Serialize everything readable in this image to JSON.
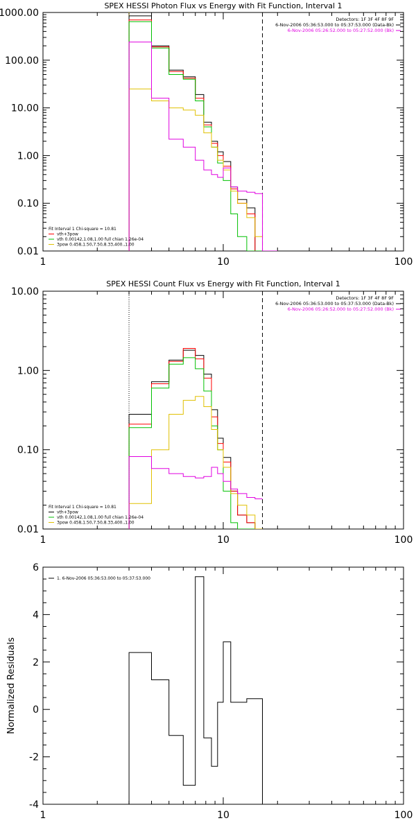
{
  "chart_data": [
    {
      "type": "line",
      "title": "SPEX HESSI Photon Flux vs Energy with Fit Function, Interval 1",
      "xlabel": "",
      "ylabel": "",
      "x_scale": "log",
      "y_scale": "log",
      "xlim": [
        1,
        100
      ],
      "ylim": [
        0.01,
        1000
      ],
      "x_ticks": [
        {
          "value": 1,
          "label": "1"
        },
        {
          "value": 10,
          "label": "10"
        },
        {
          "value": 100,
          "label": "100"
        }
      ],
      "y_ticks": [
        {
          "value": 1000,
          "label": "1000.00"
        },
        {
          "value": 100,
          "label": "100.00"
        },
        {
          "value": 10,
          "label": "10.00"
        },
        {
          "value": 1,
          "label": "1.00"
        },
        {
          "value": 0.1,
          "label": "0.10"
        },
        {
          "value": 0.01,
          "label": "0.01"
        }
      ],
      "header_lines": [
        "Detectors: 1F 3F 4F 8F 9F",
        "6-Nov-2006 05:36:53.000 to 05:37:53.000 (Data-Bk)",
        "6-Nov-2006 05:26:52.000 to 05:27:52.000 (Bk)"
      ],
      "header_colors": [
        "#000000",
        "#000000",
        "#e000e0"
      ],
      "legend_lines": [
        "Fit Interval 1    Chi-square = 10.81",
        "vth+3pow",
        "vth 0.00142,1.08,1.00  full chian 1.26e-04",
        "3pow 0.458,1.50,7.50,8.33,400.,1.00"
      ],
      "legend_colors": [
        "#000000",
        "#ff0000",
        "#00c000",
        "#e0c000"
      ],
      "vlines": [
        {
          "x": 3.0,
          "style": "dotted",
          "color": "#e0c000"
        },
        {
          "x": 16.5,
          "style": "dashed",
          "color": "#000000"
        }
      ],
      "edges": [
        3.0,
        4.0,
        5.0,
        6.0,
        7.0,
        7.8,
        8.6,
        9.3,
        10.0,
        11.0,
        12.0,
        13.5,
        15.0,
        16.5,
        18.0,
        20.0
      ],
      "series": [
        {
          "color": "#000000",
          "values": [
            850,
            200,
            62,
            45,
            19,
            5,
            2.0,
            1.2,
            0.75,
            0.22,
            0.12,
            0.08,
            null,
            null,
            null
          ]
        },
        {
          "color": "#ff0000",
          "values": [
            700,
            190,
            58,
            42,
            16,
            4.4,
            1.8,
            1.0,
            0.6,
            0.2,
            0.1,
            0.06,
            null,
            null,
            null
          ]
        },
        {
          "color": "#00c000",
          "values": [
            640,
            180,
            50,
            40,
            14,
            4.0,
            1.5,
            0.7,
            0.3,
            0.06,
            0.02,
            0.005,
            null,
            null,
            null
          ]
        },
        {
          "color": "#e0c000",
          "values": [
            25,
            14,
            10,
            9,
            7,
            3.0,
            1.5,
            0.8,
            0.5,
            0.18,
            0.1,
            0.05,
            0.02,
            0.01,
            0.005
          ]
        },
        {
          "color": "#e000e0",
          "values": [
            240,
            16,
            2.2,
            1.5,
            0.8,
            0.5,
            0.4,
            0.35,
            0.55,
            0.22,
            0.18,
            0.17,
            0.16,
            null,
            null
          ]
        }
      ]
    },
    {
      "type": "line",
      "title": "SPEX HESSI Count Flux vs Energy with Fit Function, Interval 1",
      "xlabel": "",
      "ylabel": "",
      "x_scale": "log",
      "y_scale": "log",
      "xlim": [
        1,
        100
      ],
      "ylim": [
        0.01,
        10
      ],
      "x_ticks": [
        {
          "value": 1,
          "label": "1"
        },
        {
          "value": 10,
          "label": "10"
        },
        {
          "value": 100,
          "label": "100"
        }
      ],
      "y_ticks": [
        {
          "value": 10,
          "label": "10.00"
        },
        {
          "value": 1,
          "label": "1.00"
        },
        {
          "value": 0.1,
          "label": "0.10"
        },
        {
          "value": 0.01,
          "label": "0.01"
        }
      ],
      "header_lines": [
        "Detectors: 1F 3F 4F 8F 9F",
        "6-Nov-2006 05:36:53.000 to 05:37:53.000 (Data-Bk)",
        "6-Nov-2006 05:26:52.000 to 05:27:52.000 (Bk)"
      ],
      "header_colors": [
        "#000000",
        "#000000",
        "#e000e0"
      ],
      "legend_lines": [
        "Fit Interval 1    Chi-square = 10.81",
        "vth+3pow",
        "vth 0.00142,1.08,1.00  full chian 1.26e-04",
        "3pow 0.458,1.50,7.50,8.33,400.,1.00"
      ],
      "legend_colors": [
        "#000000",
        "#000000",
        "#00c000",
        "#e0c000"
      ],
      "vlines": [
        {
          "x": 3.0,
          "style": "dotted",
          "color": "#000000"
        },
        {
          "x": 16.5,
          "style": "dashed",
          "color": "#000000"
        }
      ],
      "edges": [
        3.0,
        4.0,
        5.0,
        6.0,
        7.0,
        7.8,
        8.6,
        9.3,
        10.0,
        11.0,
        12.0,
        13.5,
        15.0,
        16.5
      ],
      "series": [
        {
          "color": "#000000",
          "values": [
            0.28,
            0.72,
            1.35,
            1.8,
            1.55,
            0.9,
            0.32,
            0.14,
            0.08,
            0.03,
            0.015,
            0.012,
            0.01
          ]
        },
        {
          "color": "#ff0000",
          "values": [
            0.21,
            0.68,
            1.3,
            1.9,
            1.4,
            0.8,
            0.26,
            0.12,
            0.07,
            0.03,
            0.015,
            0.012,
            0.01
          ]
        },
        {
          "color": "#00c000",
          "values": [
            0.19,
            0.6,
            1.2,
            1.45,
            1.05,
            0.55,
            0.2,
            0.1,
            0.03,
            0.012,
            0.01,
            0.005,
            null
          ]
        },
        {
          "color": "#e0c000",
          "values": [
            0.021,
            0.1,
            0.28,
            0.42,
            0.47,
            0.35,
            0.18,
            0.1,
            0.06,
            0.028,
            0.02,
            0.015,
            0.01
          ]
        },
        {
          "color": "#e000e0",
          "values": [
            0.082,
            0.058,
            0.05,
            0.046,
            0.044,
            0.046,
            0.06,
            0.05,
            0.04,
            0.032,
            0.028,
            0.025,
            0.024
          ]
        }
      ]
    },
    {
      "type": "line",
      "title": "",
      "xlabel": "",
      "ylabel": "Normalized Residuals",
      "x_scale": "log",
      "y_scale": "linear",
      "xlim": [
        1,
        100
      ],
      "ylim": [
        -4,
        6
      ],
      "x_ticks": [
        {
          "value": 1,
          "label": "1"
        },
        {
          "value": 10,
          "label": "10"
        },
        {
          "value": 100,
          "label": "100"
        }
      ],
      "y_ticks": [
        {
          "value": 6,
          "label": "6"
        },
        {
          "value": 4,
          "label": "4"
        },
        {
          "value": 2,
          "label": "2"
        },
        {
          "value": 0,
          "label": "0"
        },
        {
          "value": -2,
          "label": "-2"
        },
        {
          "value": -4,
          "label": "-4"
        }
      ],
      "legend_lines": [
        "1. 6-Nov-2006 05:36:53.000 to 05:37:53.000"
      ],
      "legend_colors": [
        "#000000"
      ],
      "edges": [
        3.0,
        4.0,
        5.0,
        6.0,
        7.0,
        7.8,
        8.6,
        9.3,
        10.0,
        11.0,
        12.0,
        13.5,
        15.0,
        16.5
      ],
      "series": [
        {
          "color": "#000000",
          "values": [
            2.4,
            1.25,
            -1.1,
            -3.2,
            5.6,
            -1.2,
            -2.4,
            0.3,
            2.85,
            0.3,
            0.3,
            0.45,
            0.45
          ]
        }
      ]
    }
  ]
}
